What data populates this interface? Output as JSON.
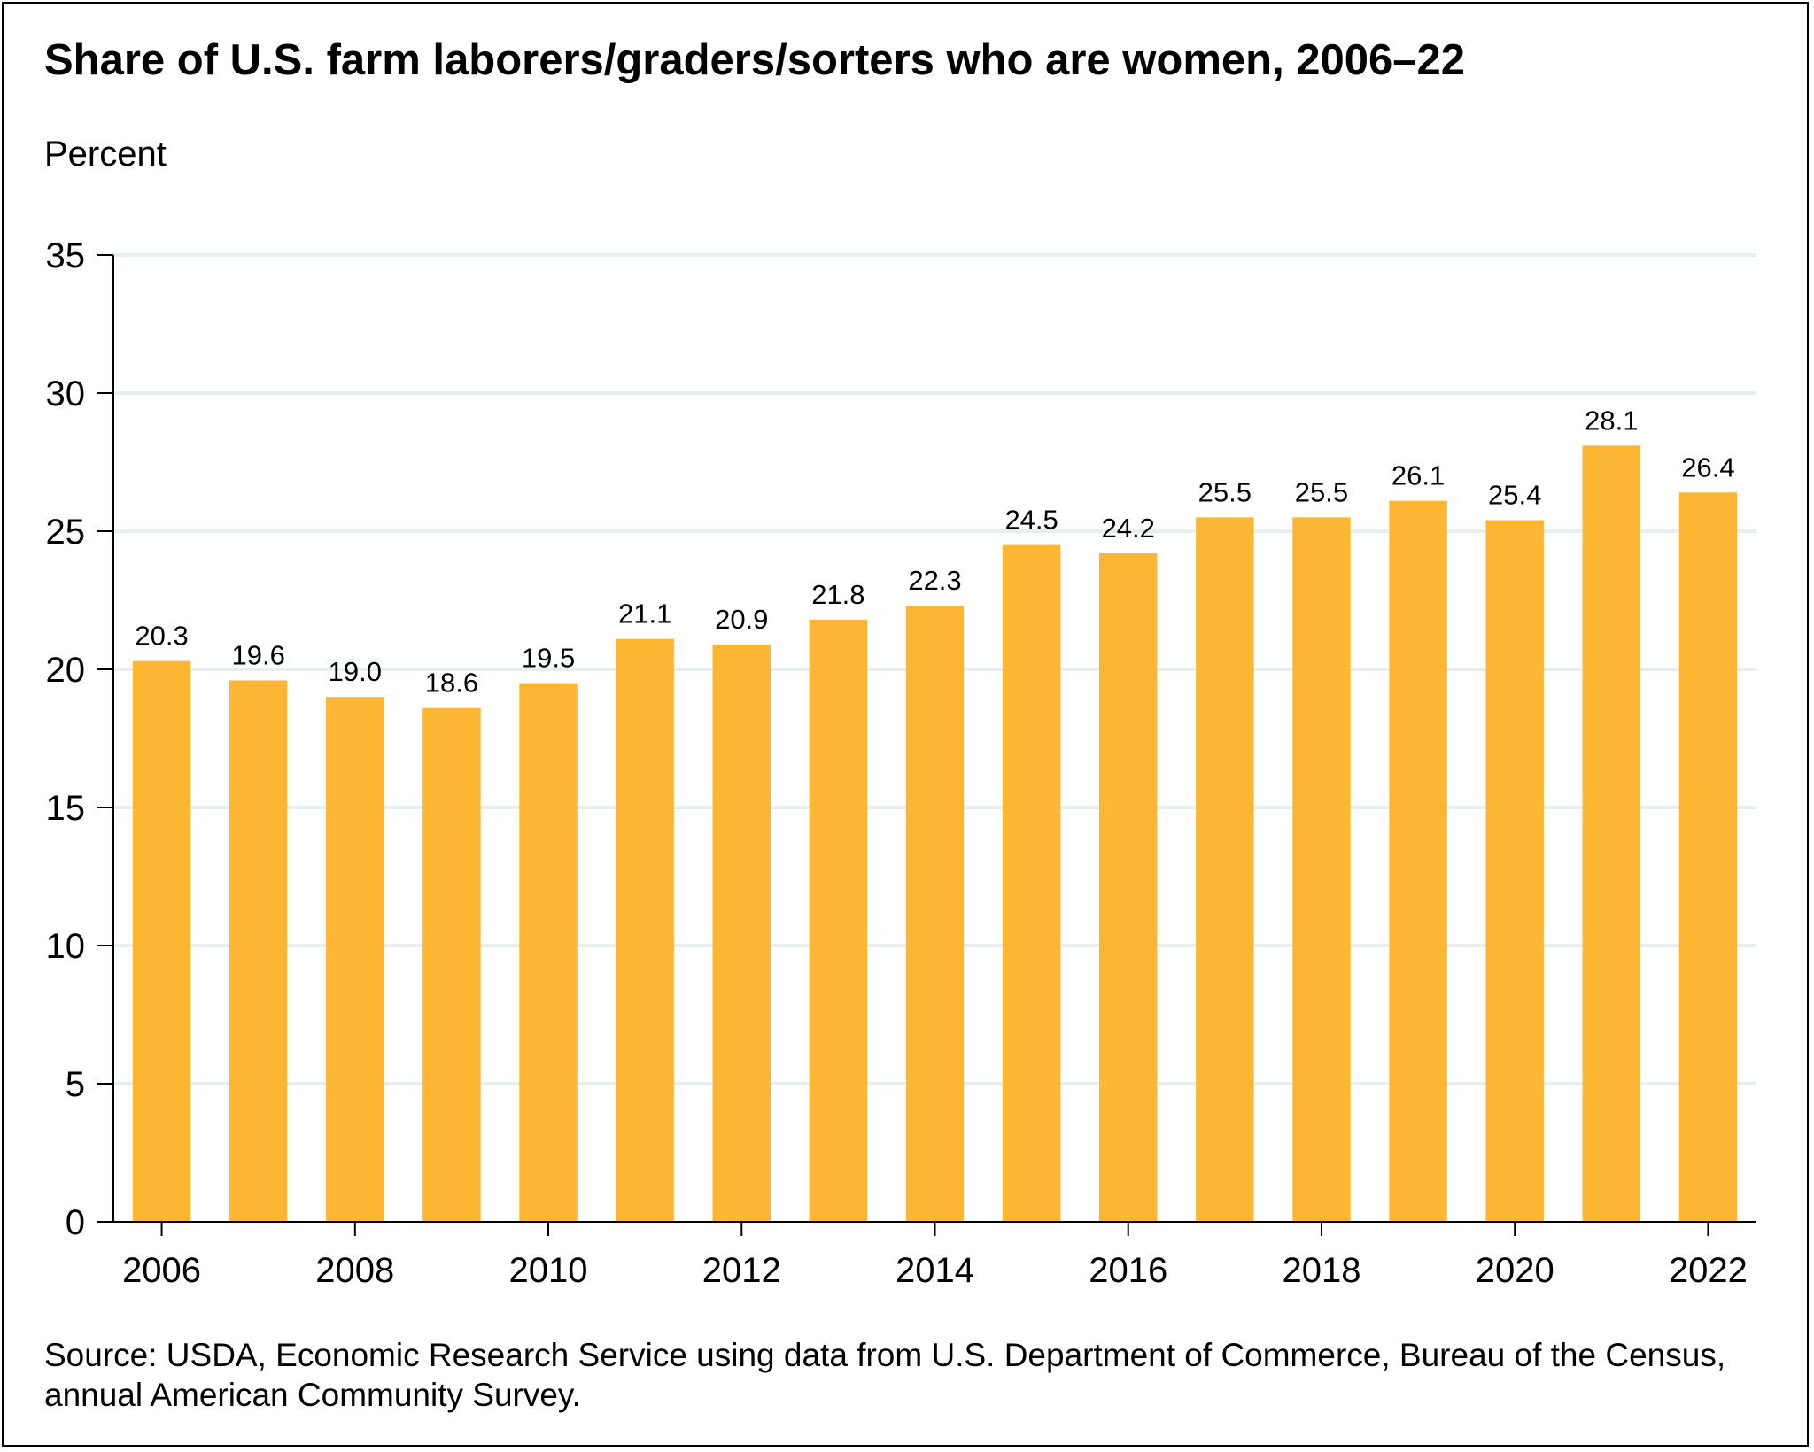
{
  "chart_data": {
    "type": "bar",
    "title": "Share of U.S. farm laborers/graders/sorters who are women, 2006–22",
    "ylabel": "Percent",
    "xlabel": "",
    "categories": [
      "2006",
      "2007",
      "2008",
      "2009",
      "2010",
      "2011",
      "2012",
      "2013",
      "2014",
      "2015",
      "2016",
      "2017",
      "2018",
      "2019",
      "2020",
      "2021",
      "2022"
    ],
    "values": [
      20.3,
      19.6,
      19.0,
      18.6,
      19.5,
      21.1,
      20.9,
      21.8,
      22.3,
      24.5,
      24.2,
      25.5,
      25.5,
      26.1,
      25.4,
      28.1,
      26.4
    ],
    "value_labels": [
      "20.3",
      "19.6",
      "19.0",
      "18.6",
      "19.5",
      "21.1",
      "20.9",
      "21.8",
      "22.3",
      "24.5",
      "24.2",
      "25.5",
      "25.5",
      "26.1",
      "25.4",
      "28.1",
      "26.4"
    ],
    "ylim": [
      0,
      35
    ],
    "yticks": [
      "0",
      "5",
      "10",
      "15",
      "20",
      "25",
      "30",
      "35"
    ],
    "xtick_labels": [
      "2006",
      "2008",
      "2010",
      "2012",
      "2014",
      "2016",
      "2018",
      "2020",
      "2022"
    ],
    "grid": true,
    "bar_color": "#FDB634",
    "grid_color": "#E6EEF0",
    "source": "Source: USDA, Economic Research Service using data from U.S. Department of Commerce, Bureau of the Census, annual American Community Survey."
  }
}
